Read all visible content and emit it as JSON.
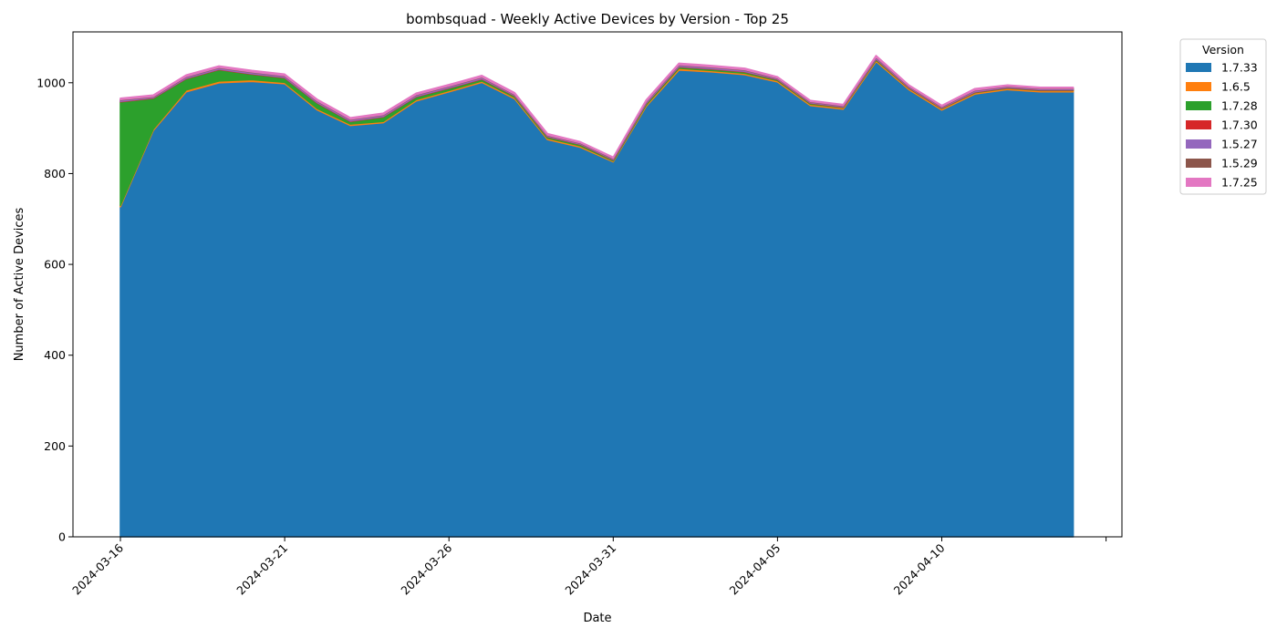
{
  "chart_data": {
    "type": "area",
    "stacked": true,
    "title": "bombsquad - Weekly Active Devices by Version - Top 25",
    "xlabel": "Date",
    "ylabel": "Number of Active Devices",
    "ylim": [
      0,
      1112
    ],
    "yticks": [
      0,
      200,
      400,
      600,
      800,
      1000
    ],
    "xtick_labels": [
      "2024-03-16",
      "2024-03-21",
      "2024-03-26",
      "2024-03-31",
      "2024-04-05",
      "2024-04-10",
      ""
    ],
    "grid": false,
    "legend": {
      "title": "Version",
      "placement": "upper-right-outside"
    },
    "x": [
      "2024-03-16",
      "2024-03-17",
      "2024-03-18",
      "2024-03-19",
      "2024-03-20",
      "2024-03-21",
      "2024-03-22",
      "2024-03-23",
      "2024-03-24",
      "2024-03-25",
      "2024-03-26",
      "2024-03-27",
      "2024-03-28",
      "2024-03-29",
      "2024-03-30",
      "2024-03-31",
      "2024-04-01",
      "2024-04-02",
      "2024-04-03",
      "2024-04-04",
      "2024-04-05",
      "2024-04-06",
      "2024-04-07",
      "2024-04-08",
      "2024-04-09",
      "2024-04-10",
      "2024-04-11",
      "2024-04-12",
      "2024-04-13",
      "2024-04-14"
    ],
    "series": [
      {
        "name": "1.7.33",
        "color": "#1f77b4",
        "values": [
          727,
          895,
          980,
          1000,
          1003,
          998,
          940,
          906,
          912,
          960,
          980,
          1001,
          965,
          875,
          858,
          826,
          948,
          1028,
          1024,
          1018,
          1002,
          950,
          942,
          1047,
          985,
          940,
          975,
          985,
          980,
          980
        ]
      },
      {
        "name": "1.6.5",
        "color": "#ff7f0e",
        "values": [
          3,
          3,
          4,
          4,
          4,
          3,
          3,
          3,
          3,
          3,
          3,
          3,
          3,
          3,
          3,
          2,
          3,
          4,
          3,
          3,
          3,
          3,
          3,
          3,
          3,
          3,
          3,
          3,
          3,
          3
        ]
      },
      {
        "name": "1.7.28",
        "color": "#2ca02c",
        "values": [
          228,
          68,
          25,
          25,
          12,
          10,
          12,
          6,
          10,
          6,
          5,
          4,
          3,
          3,
          3,
          2,
          3,
          3,
          3,
          3,
          2,
          2,
          1,
          2,
          1,
          1,
          1,
          1,
          1,
          1
        ]
      },
      {
        "name": "1.7.30",
        "color": "#d62728",
        "values": [
          1,
          1,
          1,
          1,
          1,
          1,
          1,
          1,
          1,
          1,
          1,
          1,
          1,
          1,
          1,
          1,
          1,
          1,
          1,
          1,
          1,
          1,
          1,
          1,
          1,
          1,
          1,
          1,
          1,
          1
        ]
      },
      {
        "name": "1.5.27",
        "color": "#9467bd",
        "values": [
          3,
          2,
          3,
          3,
          3,
          3,
          3,
          3,
          3,
          3,
          3,
          3,
          2,
          2,
          2,
          2,
          3,
          3,
          3,
          3,
          2,
          2,
          2,
          3,
          2,
          2,
          3,
          2,
          2,
          2
        ]
      },
      {
        "name": "1.5.29",
        "color": "#8c564b",
        "values": [
          1,
          1,
          1,
          1,
          1,
          1,
          1,
          1,
          1,
          1,
          1,
          1,
          1,
          1,
          1,
          1,
          1,
          1,
          1,
          1,
          1,
          1,
          1,
          1,
          1,
          1,
          1,
          1,
          1,
          1
        ]
      },
      {
        "name": "1.7.25",
        "color": "#e377c2",
        "values": [
          3,
          3,
          3,
          3,
          3,
          3,
          3,
          3,
          3,
          3,
          3,
          3,
          3,
          3,
          2,
          2,
          3,
          3,
          3,
          3,
          2,
          2,
          2,
          3,
          2,
          2,
          3,
          2,
          2,
          2
        ]
      }
    ]
  }
}
